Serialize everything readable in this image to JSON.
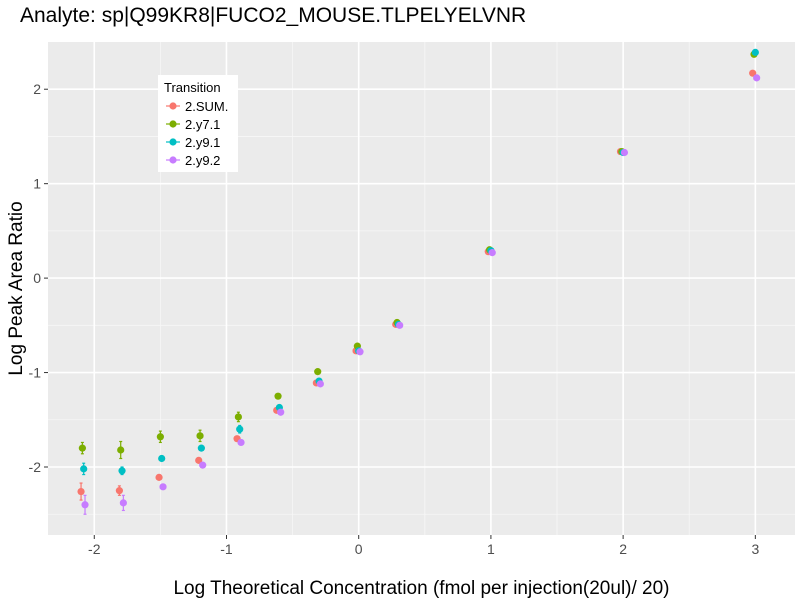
{
  "chart_data": {
    "type": "scatter",
    "title": "Analyte: sp|Q99KR8|FUCO2_MOUSE.TLPELYELVNR",
    "xlabel": "Log Theoretical Concentration (fmol per injection(20ul)/ 20)",
    "ylabel": "Log Peak Area Ratio",
    "xlim": [
      -2.35,
      3.3
    ],
    "ylim": [
      -2.72,
      2.5
    ],
    "x_ticks": [
      -2,
      -1,
      0,
      1,
      2,
      3
    ],
    "y_ticks": [
      -2,
      -1,
      0,
      1,
      2
    ],
    "x_tick_labels": [
      "-2",
      "-1",
      "0",
      "1",
      "2",
      "3"
    ],
    "y_tick_labels": [
      "-2",
      "-1",
      "0",
      "1",
      "2"
    ],
    "grid": true,
    "legend": {
      "title": "Transition",
      "placement": "top-left",
      "entries": [
        "2.SUM.",
        "2.y7.1",
        "2.y9.1",
        "2.y9.2"
      ]
    },
    "series": [
      {
        "name": "2.SUM.",
        "color": "#F8766D",
        "points": [
          {
            "x": -2.1,
            "y": -2.26,
            "err": 0.09
          },
          {
            "x": -1.81,
            "y": -2.25,
            "err": 0.05
          },
          {
            "x": -1.51,
            "y": -2.11,
            "err": 0
          },
          {
            "x": -1.21,
            "y": -1.93,
            "err": 0
          },
          {
            "x": -0.92,
            "y": -1.7,
            "err": 0
          },
          {
            "x": -0.62,
            "y": -1.4,
            "err": 0
          },
          {
            "x": -0.32,
            "y": -1.11,
            "err": 0
          },
          {
            "x": -0.02,
            "y": -0.77,
            "err": 0
          },
          {
            "x": 0.28,
            "y": -0.49,
            "err": 0
          },
          {
            "x": 0.98,
            "y": 0.28,
            "err": 0
          },
          {
            "x": 1.98,
            "y": 1.34,
            "err": 0
          },
          {
            "x": 2.98,
            "y": 2.17,
            "err": 0
          }
        ]
      },
      {
        "name": "2.y7.1",
        "color": "#7CAE00",
        "points": [
          {
            "x": -2.09,
            "y": -1.8,
            "err": 0.06
          },
          {
            "x": -1.8,
            "y": -1.82,
            "err": 0.09
          },
          {
            "x": -1.5,
            "y": -1.68,
            "err": 0.06
          },
          {
            "x": -1.2,
            "y": -1.67,
            "err": 0.06
          },
          {
            "x": -0.91,
            "y": -1.47,
            "err": 0.05
          },
          {
            "x": -0.61,
            "y": -1.25,
            "err": 0
          },
          {
            "x": -0.31,
            "y": -0.99,
            "err": 0
          },
          {
            "x": -0.01,
            "y": -0.72,
            "err": 0
          },
          {
            "x": 0.29,
            "y": -0.47,
            "err": 0
          },
          {
            "x": 0.99,
            "y": 0.3,
            "err": 0
          },
          {
            "x": 1.99,
            "y": 1.34,
            "err": 0
          },
          {
            "x": 2.99,
            "y": 2.37,
            "err": 0
          }
        ]
      },
      {
        "name": "2.y9.1",
        "color": "#00BFC4",
        "points": [
          {
            "x": -2.08,
            "y": -2.02,
            "err": 0.06
          },
          {
            "x": -1.79,
            "y": -2.04,
            "err": 0.04
          },
          {
            "x": -1.49,
            "y": -1.91,
            "err": 0
          },
          {
            "x": -1.19,
            "y": -1.8,
            "err": 0
          },
          {
            "x": -0.9,
            "y": -1.6,
            "err": 0.04
          },
          {
            "x": -0.6,
            "y": -1.37,
            "err": 0
          },
          {
            "x": -0.3,
            "y": -1.09,
            "err": 0
          },
          {
            "x": 0.0,
            "y": -0.77,
            "err": 0
          },
          {
            "x": 0.3,
            "y": -0.49,
            "err": 0
          },
          {
            "x": 1.0,
            "y": 0.29,
            "err": 0
          },
          {
            "x": 2.0,
            "y": 1.33,
            "err": 0
          },
          {
            "x": 3.0,
            "y": 2.39,
            "err": 0
          }
        ]
      },
      {
        "name": "2.y9.2",
        "color": "#C77CFF",
        "points": [
          {
            "x": -2.07,
            "y": -2.4,
            "err": 0.1
          },
          {
            "x": -1.78,
            "y": -2.38,
            "err": 0.08
          },
          {
            "x": -1.48,
            "y": -2.21,
            "err": 0
          },
          {
            "x": -1.18,
            "y": -1.98,
            "err": 0
          },
          {
            "x": -0.89,
            "y": -1.74,
            "err": 0
          },
          {
            "x": -0.59,
            "y": -1.42,
            "err": 0
          },
          {
            "x": -0.29,
            "y": -1.12,
            "err": 0
          },
          {
            "x": 0.01,
            "y": -0.78,
            "err": 0
          },
          {
            "x": 0.31,
            "y": -0.5,
            "err": 0
          },
          {
            "x": 1.01,
            "y": 0.27,
            "err": 0
          },
          {
            "x": 2.01,
            "y": 1.33,
            "err": 0
          },
          {
            "x": 3.01,
            "y": 2.12,
            "err": 0
          }
        ]
      }
    ]
  }
}
